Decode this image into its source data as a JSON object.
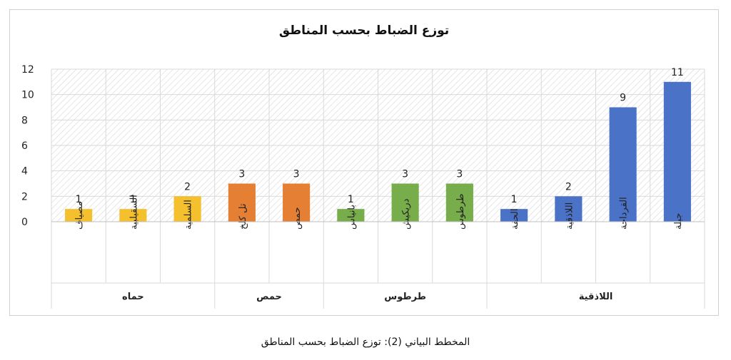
{
  "chart_data": {
    "type": "bar",
    "title": "توزع الضباط بحسب المناطق",
    "ylim": [
      0,
      12
    ],
    "yticks": [
      0,
      2,
      4,
      6,
      8,
      10,
      12
    ],
    "grid": true,
    "legend": "none",
    "categories": [
      "مصياف",
      "السقيلبية",
      "السلمية",
      "تل كلخ",
      "حمص",
      "بانياس",
      "دريكيش",
      "طرطوس",
      "الحفة",
      "اللاذقية",
      "القرداحة",
      "جبلة"
    ],
    "values": [
      1,
      1,
      2,
      3,
      3,
      1,
      3,
      3,
      1,
      2,
      9,
      11
    ],
    "groups": [
      {
        "name": "حماه",
        "color": "#f4c02e",
        "count": 3
      },
      {
        "name": "حمص",
        "color": "#e47f33",
        "count": 2
      },
      {
        "name": "طرطوس",
        "color": "#77ad4a",
        "count": 3
      },
      {
        "name": "اللاذقية",
        "color": "#4a72c6",
        "count": 4
      }
    ]
  },
  "caption": "المخطط البياني (2): توزع الضباط بحسب المناطق"
}
